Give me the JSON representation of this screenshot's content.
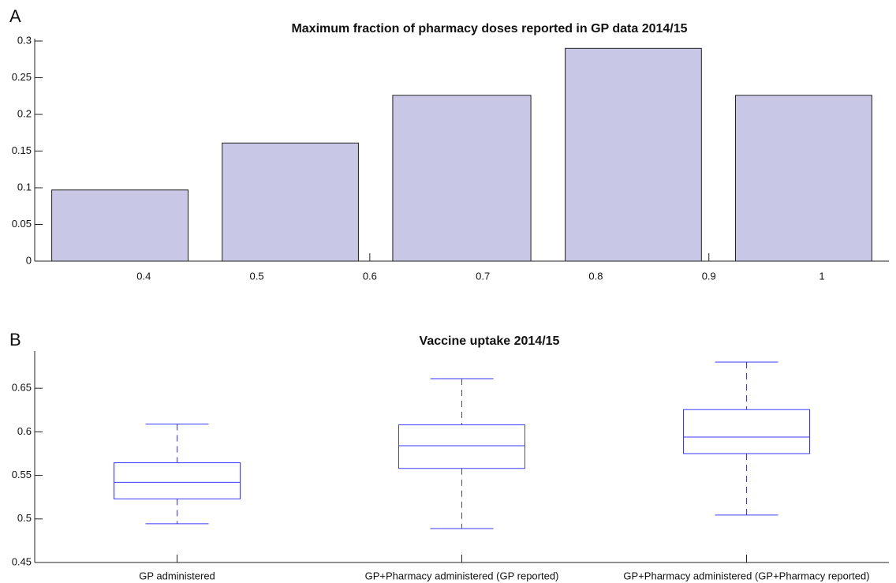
{
  "chart_data": [
    {
      "type": "histogram",
      "panel_label": "A",
      "title": "Maximum fraction of pharmacy doses reported in GP data 2014/15",
      "bins": [
        0.3035,
        0.4543,
        0.605,
        0.7578,
        0.9085,
        1.0593
      ],
      "values": [
        0.097,
        0.161,
        0.226,
        0.29,
        0.226
      ],
      "color": "#c8c8e6",
      "xlim": [
        0.3035,
        1.0593
      ],
      "xticks": [
        0.4,
        0.5,
        0.6,
        0.7,
        0.8,
        0.9,
        1
      ],
      "ylim": [
        0,
        0.3
      ],
      "yticks": [
        0,
        0.05,
        0.1,
        0.15,
        0.2,
        0.25,
        0.3
      ],
      "grid": false
    },
    {
      "type": "box",
      "panel_label": "B",
      "title": "Vaccine uptake 2014/15",
      "categories": [
        "GP administered",
        "GP+Pharmacy administered (GP reported)",
        "GP+Pharmacy administered (GP+Pharmacy reported)"
      ],
      "boxes": [
        {
          "low": 0.4945,
          "q1": 0.523,
          "median": 0.542,
          "q3": 0.5645,
          "high": 0.609
        },
        {
          "low": 0.489,
          "q1": 0.558,
          "median": 0.584,
          "q3": 0.608,
          "high": 0.661
        },
        {
          "low": 0.5045,
          "q1": 0.575,
          "median": 0.594,
          "q3": 0.6255,
          "high": 0.68
        }
      ],
      "color": "#3a3aff",
      "ylim": [
        0.45,
        0.69
      ],
      "yticks": [
        0.45,
        0.5,
        0.55,
        0.6,
        0.65
      ],
      "grid": false
    }
  ]
}
